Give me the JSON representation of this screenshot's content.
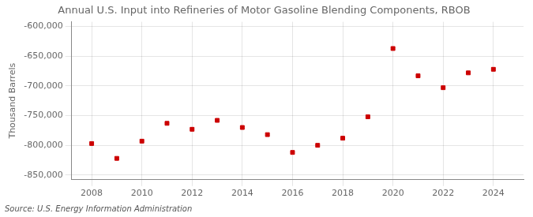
{
  "chart_data": {
    "type": "scatter",
    "title": "Annual U.S. Input into Refineries of Motor Gasoline Blending Components, RBOB",
    "y_label": "Thousand Barrels",
    "annotation": "Source: U.S. Energy Information Administration",
    "x": [
      2008,
      2009,
      2010,
      2011,
      2012,
      2013,
      2014,
      2015,
      2016,
      2017,
      2018,
      2019,
      2020,
      2021,
      2022,
      2023,
      2024
    ],
    "values": [
      -797000,
      -822000,
      -793000,
      -763000,
      -773000,
      -758000,
      -770000,
      -782000,
      -812000,
      -800000,
      -788000,
      -752000,
      -637000,
      -683000,
      -703000,
      -678000,
      -672000
    ],
    "color": "#cc0000",
    "marker": "square",
    "xlim": [
      2007.2,
      2025.2
    ],
    "xticks": [
      2008,
      2010,
      2012,
      2014,
      2016,
      2018,
      2020,
      2022,
      2024
    ],
    "ylim": [
      -858000,
      -592000
    ],
    "yticks": [
      {
        "value": -850000,
        "label": "-850,000"
      },
      {
        "value": -800000,
        "label": "-800,000"
      },
      {
        "value": -750000,
        "label": "-750,000"
      },
      {
        "value": -700000,
        "label": "-700,000"
      },
      {
        "value": -650000,
        "label": "-650,000"
      },
      {
        "value": -600000,
        "label": "-600,000"
      }
    ],
    "grid": true
  }
}
